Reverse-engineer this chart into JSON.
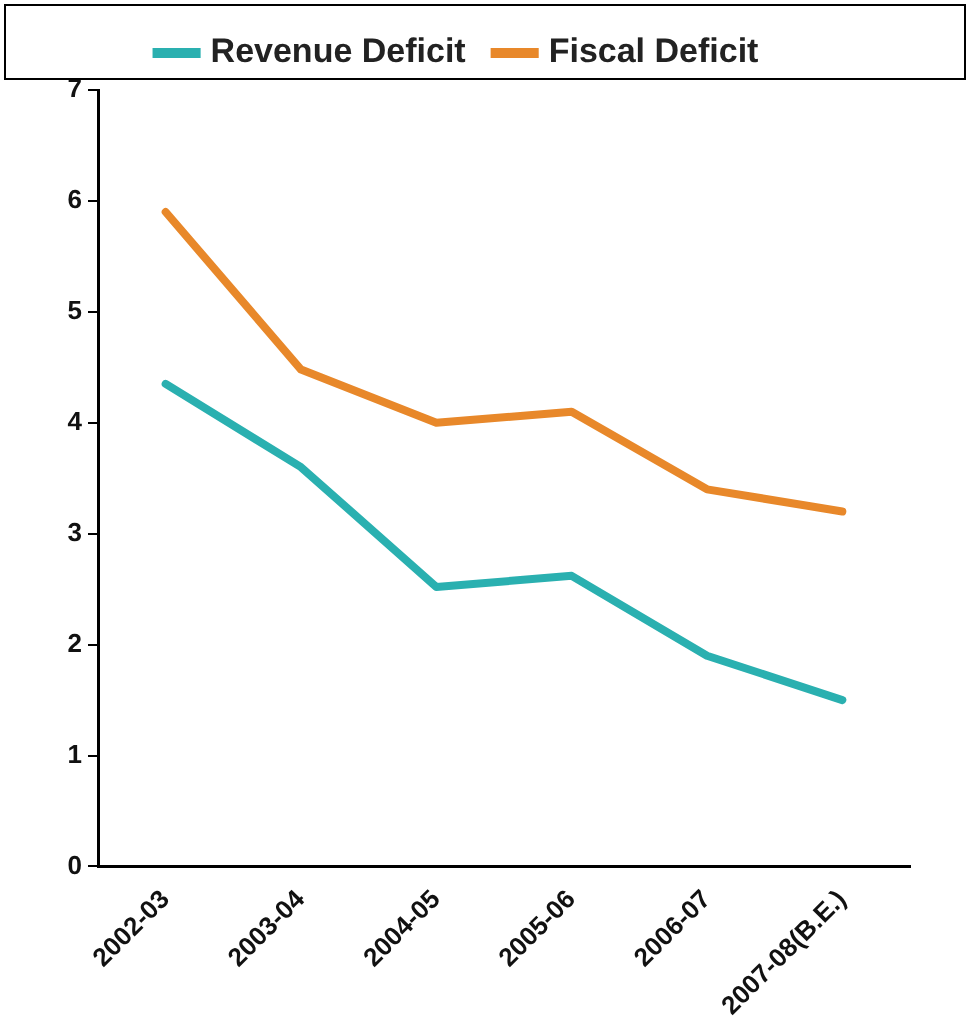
{
  "chart_data": {
    "type": "line",
    "categories": [
      "2002-03",
      "2003-04",
      "2004-05",
      "2005-06",
      "2006-07",
      "2007-08(B.E.)"
    ],
    "series": [
      {
        "name": "Revenue Deficit",
        "color": "#2ab0b0",
        "values": [
          4.35,
          3.6,
          2.52,
          2.62,
          1.9,
          1.5
        ]
      },
      {
        "name": "Fiscal Deficit",
        "color": "#e8882a",
        "values": [
          5.9,
          4.48,
          4.0,
          4.1,
          3.4,
          3.2
        ]
      }
    ],
    "ylim": [
      0,
      7
    ],
    "yticks": [
      0,
      1,
      2,
      3,
      4,
      5,
      6,
      7
    ],
    "grid": false,
    "legend": "top",
    "marker": "none",
    "line_style": "solid"
  }
}
